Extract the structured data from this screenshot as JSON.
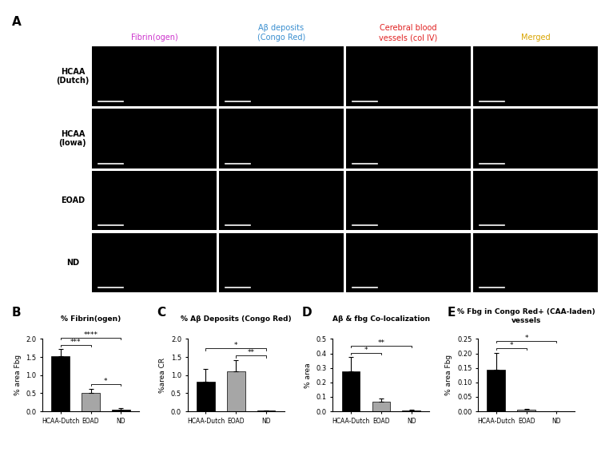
{
  "panel_a": {
    "letter": "A",
    "columns": [
      {
        "label": "Fibrin(ogen)",
        "color": "#cc33cc"
      },
      {
        "label": "Aβ deposits\n(Congo Red)",
        "color": "#3a8fd0"
      },
      {
        "label": "Cerebral blood\nvessels (col IV)",
        "color": "#e02020"
      },
      {
        "label": "Merged",
        "color": "#d9a400"
      }
    ],
    "rows": [
      "HCAA\n(Dutch)",
      "HCAA\n(Iowa)",
      "EOAD",
      "ND"
    ]
  },
  "chart_data": [
    {
      "panel": "B",
      "type": "bar",
      "title": "% Fibrin(ogen)",
      "y_label": "% area Fbg",
      "categories": [
        "HCAA-Dutch",
        "EOAD",
        "ND"
      ],
      "values": [
        1.52,
        0.52,
        0.05
      ],
      "errors": [
        0.2,
        0.11,
        0.03
      ],
      "colors": [
        "#000000",
        "#a6a6a6",
        "#000000"
      ],
      "ylim": [
        0,
        2.0
      ],
      "yticks": [
        {
          "value": 0,
          "label": "0.0"
        },
        {
          "value": 0.5,
          "label": "0.5"
        },
        {
          "value": 1.0,
          "label": "1.0"
        },
        {
          "value": 1.5,
          "label": "1.5"
        },
        {
          "value": 2.0,
          "label": "2.0"
        }
      ],
      "significance": [
        {
          "between": [
            "EOAD",
            "ND"
          ],
          "label": "*"
        },
        {
          "between": [
            "HCAA-Dutch",
            "EOAD"
          ],
          "label": "***"
        },
        {
          "between": [
            "HCAA-Dutch",
            "ND"
          ],
          "label": "****"
        }
      ]
    },
    {
      "panel": "C",
      "type": "bar",
      "title": "% Aβ Deposits (Congo Red)",
      "y_label": "%area CR",
      "categories": [
        "HCAA-Dutch",
        "EOAD",
        "ND"
      ],
      "values": [
        0.82,
        1.1,
        0.02
      ],
      "errors": [
        0.35,
        0.32,
        0.01
      ],
      "colors": [
        "#000000",
        "#a6a6a6",
        "#000000"
      ],
      "ylim": [
        0,
        2.0
      ],
      "yticks": [
        {
          "value": 0,
          "label": "0.0"
        },
        {
          "value": 0.5,
          "label": "0.5"
        },
        {
          "value": 1.0,
          "label": "1.0"
        },
        {
          "value": 1.5,
          "label": "1.5"
        },
        {
          "value": 2.0,
          "label": "2.0"
        }
      ],
      "significance": [
        {
          "between": [
            "EOAD",
            "ND"
          ],
          "label": "**"
        },
        {
          "between": [
            "HCAA-Dutch",
            "ND"
          ],
          "label": "*"
        }
      ]
    },
    {
      "panel": "D",
      "type": "bar",
      "title": "Aβ & fbg Co-localization",
      "y_label": "% area",
      "categories": [
        "HCAA-Dutch",
        "EOAD",
        "ND"
      ],
      "values": [
        0.275,
        0.065,
        0.008
      ],
      "errors": [
        0.1,
        0.025,
        0.003
      ],
      "colors": [
        "#000000",
        "#a6a6a6",
        "#000000"
      ],
      "ylim": [
        0,
        0.5
      ],
      "yticks": [
        {
          "value": 0,
          "label": "0.0"
        },
        0.1,
        0.2,
        0.3,
        0.4,
        0.5
      ],
      "significance": [
        {
          "between": [
            "HCAA-Dutch",
            "EOAD"
          ],
          "label": "*"
        },
        {
          "between": [
            "HCAA-Dutch",
            "ND"
          ],
          "label": "**"
        }
      ]
    },
    {
      "panel": "E",
      "type": "bar",
      "title": "% Fbg in Congo Red+ (CAA-laden) vessels",
      "y_label": "% area Fbg",
      "categories": [
        "HCAA-Dutch",
        "EOAD",
        "ND"
      ],
      "values": [
        0.143,
        0.005,
        0.0
      ],
      "errors": [
        0.06,
        0.004,
        0.0
      ],
      "colors": [
        "#000000",
        "#a6a6a6",
        "#000000"
      ],
      "ylim": [
        0,
        0.25
      ],
      "yticks": [
        {
          "value": 0,
          "label": "0.00"
        },
        0.05,
        {
          "value": 0.1,
          "label": "0.10"
        },
        0.15,
        {
          "value": 0.2,
          "label": "0.20"
        },
        0.25
      ],
      "significance": [
        {
          "between": [
            "HCAA-Dutch",
            "EOAD"
          ],
          "label": "*"
        },
        {
          "between": [
            "HCAA-Dutch",
            "ND"
          ],
          "label": "*"
        }
      ]
    }
  ]
}
